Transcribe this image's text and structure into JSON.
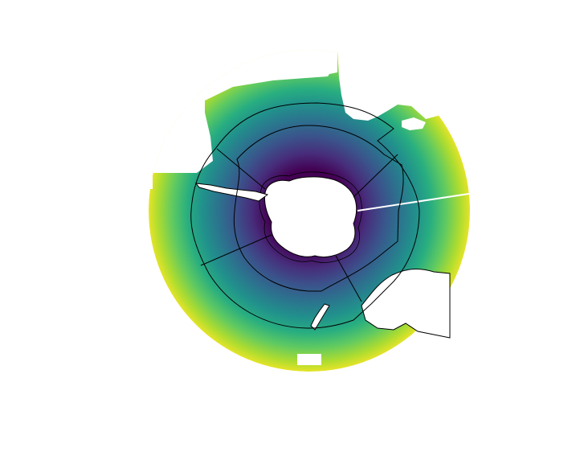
{
  "map": {
    "projection": "south-polar-stereographic",
    "colormap": "viridis",
    "colormap_stops": [
      "#440154",
      "#472d7b",
      "#3b528b",
      "#2c728e",
      "#21918c",
      "#28ae80",
      "#5ec962",
      "#addc30",
      "#fde725"
    ],
    "background_color": "#ffffff",
    "land_color": "#ffffff",
    "boundary_line_color": "#000000",
    "coastline_color": "#000000",
    "zone_boundaries_deg_lon": [
      -70,
      -20,
      70,
      160
    ],
    "zone_ring_latitudes": [
      "inner",
      "outer"
    ]
  }
}
